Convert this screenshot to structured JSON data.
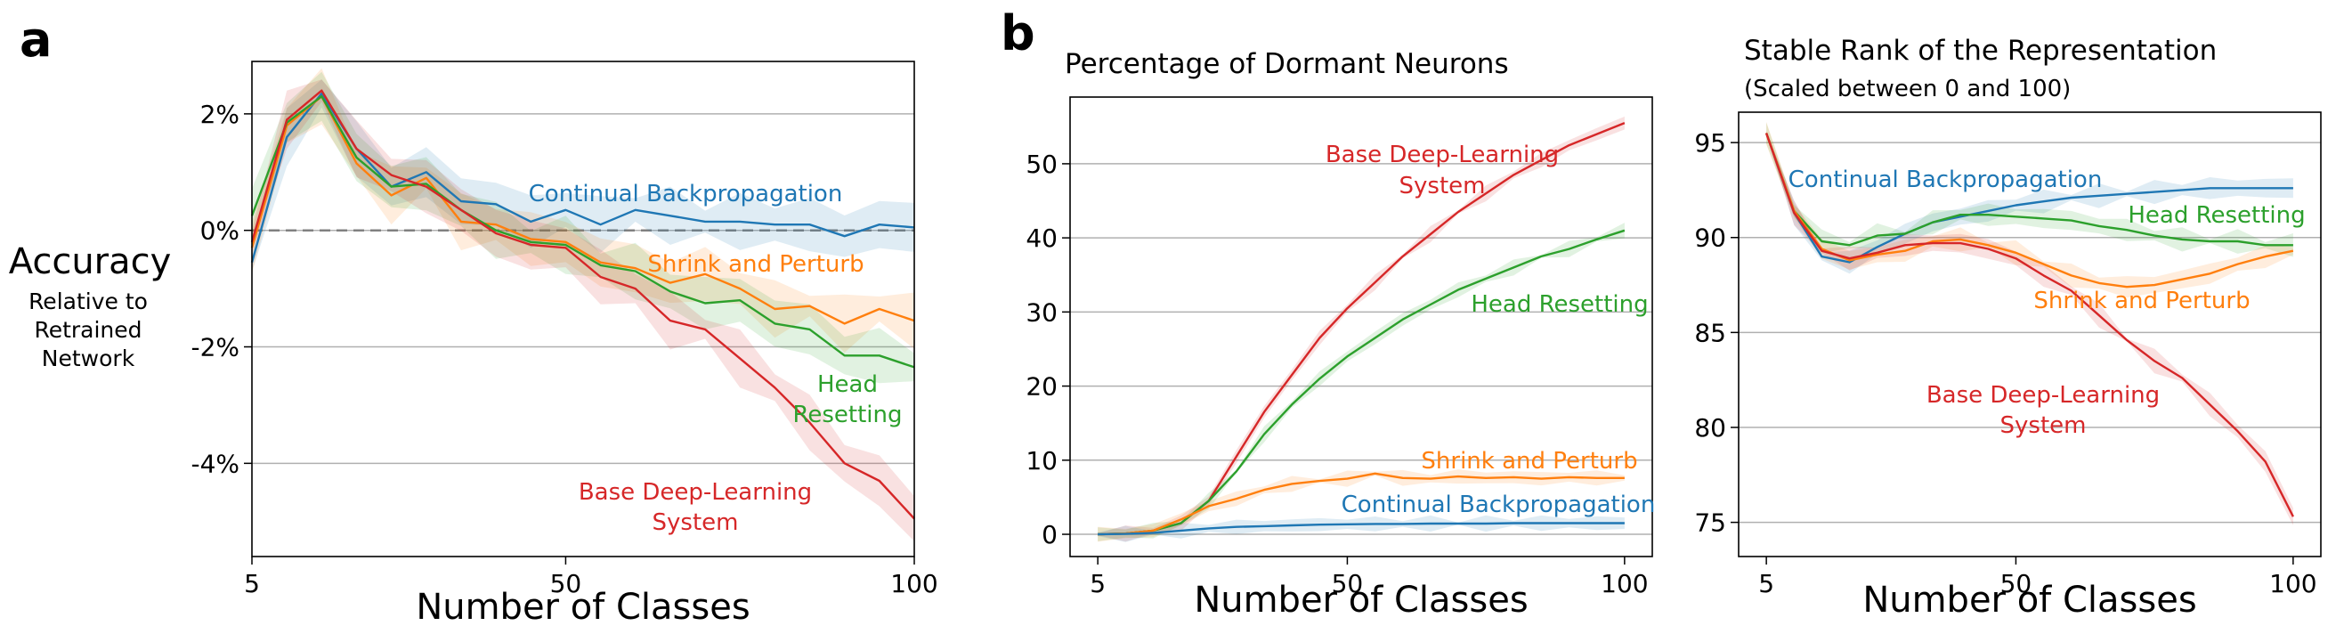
{
  "panel_labels": {
    "a": "a",
    "b": "b"
  },
  "colors": {
    "continual": "#1f77b4",
    "shrink": "#ff7f0e",
    "head": "#2ca02c",
    "base": "#d62728",
    "grid": "#b0b0b0",
    "zero_line": "#808080"
  },
  "panel_a": {
    "ylabel_main": "Accuracy",
    "ylabel_sub": [
      "Relative to",
      "Retrained",
      "Network"
    ],
    "xlabel": "Number of Classes",
    "series_labels": {
      "continual": [
        "Continual Backpropagation"
      ],
      "shrink": [
        "Shrink and Perturb"
      ],
      "head": [
        "Head",
        "Resetting"
      ],
      "base": [
        "Base Deep-Learning",
        "System"
      ]
    }
  },
  "panel_b1": {
    "title": "Percentage of Dormant Neurons",
    "xlabel": "Number of Classes",
    "series_labels": {
      "base": [
        "Base Deep-Learning",
        "System"
      ],
      "head": [
        "Head Resetting"
      ],
      "shrink": [
        "Shrink and Perturb"
      ],
      "continual": [
        "Continual Backpropagation"
      ]
    }
  },
  "panel_b2": {
    "title": "Stable Rank of the Representation",
    "subtitle": "(Scaled between 0 and 100)",
    "xlabel": "Number of Classes",
    "series_labels": {
      "continual": [
        "Continual Backpropagation"
      ],
      "head": [
        "Head Resetting"
      ],
      "shrink": [
        "Shrink and Perturb"
      ],
      "base": [
        "Base Deep-Learning",
        "System"
      ]
    }
  },
  "chart_data": [
    {
      "type": "line",
      "ylabel": "Accuracy Relative to Retrained Network",
      "xlabel": "Number of Classes",
      "xlim": [
        5,
        100
      ],
      "ylim": [
        -5.6,
        2.9
      ],
      "xticks": [
        5,
        50,
        100
      ],
      "yticks": [
        2,
        0,
        -2,
        -4
      ],
      "ytick_labels": [
        "2%",
        "0%",
        "-2%",
        "-4%"
      ],
      "grid": "horizontal",
      "reference_line": 0,
      "x": [
        5,
        10,
        15,
        20,
        25,
        30,
        35,
        40,
        45,
        50,
        55,
        60,
        65,
        70,
        75,
        80,
        85,
        90,
        95,
        100
      ],
      "series": [
        {
          "key": "continual",
          "name": "Continual Backpropagation",
          "values": [
            -0.55,
            1.6,
            2.35,
            1.4,
            0.75,
            1.0,
            0.5,
            0.45,
            0.15,
            0.35,
            0.1,
            0.35,
            0.25,
            0.15,
            0.15,
            0.1,
            0.1,
            -0.1,
            0.1,
            0.05
          ]
        },
        {
          "key": "shrink",
          "name": "Shrink and Perturb",
          "values": [
            -0.3,
            1.8,
            2.3,
            1.15,
            0.6,
            0.9,
            0.15,
            0.1,
            -0.15,
            -0.2,
            -0.55,
            -0.65,
            -0.9,
            -0.75,
            -1.0,
            -1.35,
            -1.3,
            -1.6,
            -1.35,
            -1.55
          ]
        },
        {
          "key": "head",
          "name": "Head Resetting",
          "values": [
            0.25,
            1.85,
            2.3,
            1.25,
            0.75,
            0.8,
            0.35,
            0.0,
            -0.2,
            -0.25,
            -0.6,
            -0.7,
            -1.05,
            -1.25,
            -1.2,
            -1.6,
            -1.7,
            -2.15,
            -2.15,
            -2.35
          ]
        },
        {
          "key": "base",
          "name": "Base Deep-Learning System",
          "values": [
            -0.2,
            1.9,
            2.4,
            1.4,
            0.95,
            0.75,
            0.35,
            -0.05,
            -0.25,
            -0.3,
            -0.8,
            -1.0,
            -1.55,
            -1.7,
            -2.2,
            -2.7,
            -3.3,
            -4.0,
            -4.3,
            -4.95
          ]
        }
      ]
    },
    {
      "type": "line",
      "title": "Percentage of Dormant Neurons",
      "xlabel": "Number of Classes",
      "xlim": [
        0,
        105
      ],
      "ylim": [
        -3,
        59
      ],
      "xticks": [
        5,
        50,
        100
      ],
      "yticks": [
        0,
        10,
        20,
        30,
        40,
        50
      ],
      "grid": "horizontal",
      "x": [
        5,
        10,
        15,
        20,
        25,
        30,
        35,
        40,
        45,
        50,
        55,
        60,
        65,
        70,
        75,
        80,
        85,
        90,
        95,
        100
      ],
      "series": [
        {
          "key": "base",
          "name": "Base Deep-Learning System",
          "values": [
            0,
            0.1,
            0.5,
            1.5,
            4.5,
            10.5,
            16.5,
            21.5,
            26.5,
            30.5,
            34,
            37.5,
            40.5,
            43.5,
            46,
            48.5,
            50.5,
            52.5,
            54,
            55.5
          ]
        },
        {
          "key": "head",
          "name": "Head Resetting",
          "values": [
            0,
            0.1,
            0.5,
            1.5,
            4.5,
            8.5,
            13.5,
            17.5,
            21,
            24,
            26.5,
            29,
            31,
            33,
            34.5,
            36,
            37.5,
            38.5,
            39.8,
            41
          ]
        },
        {
          "key": "shrink",
          "name": "Shrink and Perturb",
          "values": [
            0,
            0.1,
            0.5,
            2.0,
            3.8,
            4.8,
            6.0,
            6.8,
            7.2,
            7.5,
            8.2,
            7.6,
            7.5,
            7.8,
            7.6,
            7.7,
            7.5,
            7.7,
            7.6,
            7.6
          ]
        },
        {
          "key": "continual",
          "name": "Continual Backpropagation",
          "values": [
            0,
            0.05,
            0.2,
            0.5,
            0.8,
            1.0,
            1.1,
            1.2,
            1.3,
            1.35,
            1.4,
            1.4,
            1.45,
            1.45,
            1.45,
            1.5,
            1.5,
            1.5,
            1.5,
            1.5
          ]
        }
      ]
    },
    {
      "type": "line",
      "title": "Stable Rank of the Representation",
      "subtitle": "(Scaled between 0 and 100)",
      "xlabel": "Number of Classes",
      "xlim": [
        0,
        105
      ],
      "ylim": [
        73.2,
        96.6
      ],
      "xticks": [
        5,
        50,
        100
      ],
      "yticks": [
        95,
        90,
        85,
        80,
        75
      ],
      "grid": "horizontal",
      "x": [
        5,
        10,
        15,
        20,
        25,
        30,
        35,
        40,
        45,
        50,
        55,
        60,
        65,
        70,
        75,
        80,
        85,
        90,
        95,
        100
      ],
      "series": [
        {
          "key": "continual",
          "name": "Continual Backpropagation",
          "values": [
            95.5,
            91.3,
            89.0,
            88.7,
            89.5,
            90.2,
            90.8,
            91.1,
            91.4,
            91.7,
            91.9,
            92.1,
            92.2,
            92.3,
            92.4,
            92.5,
            92.6,
            92.6,
            92.6,
            92.6
          ]
        },
        {
          "key": "head",
          "name": "Head Resetting",
          "values": [
            95.5,
            91.4,
            89.8,
            89.6,
            90.1,
            90.2,
            90.8,
            91.2,
            91.2,
            91.1,
            91.0,
            90.9,
            90.6,
            90.4,
            90.1,
            89.9,
            89.8,
            89.8,
            89.6,
            89.6
          ]
        },
        {
          "key": "shrink",
          "name": "Shrink and Perturb",
          "values": [
            95.5,
            91.4,
            89.4,
            88.8,
            89.1,
            89.3,
            89.8,
            89.9,
            89.6,
            89.2,
            88.6,
            88.0,
            87.6,
            87.4,
            87.5,
            87.8,
            88.1,
            88.6,
            89.0,
            89.3
          ]
        },
        {
          "key": "base",
          "name": "Base Deep-Learning System",
          "values": [
            95.5,
            91.3,
            89.3,
            88.9,
            89.2,
            89.6,
            89.7,
            89.7,
            89.4,
            88.9,
            88.0,
            87.2,
            85.9,
            84.6,
            83.5,
            82.6,
            81.2,
            79.8,
            78.2,
            75.3
          ]
        }
      ]
    }
  ]
}
